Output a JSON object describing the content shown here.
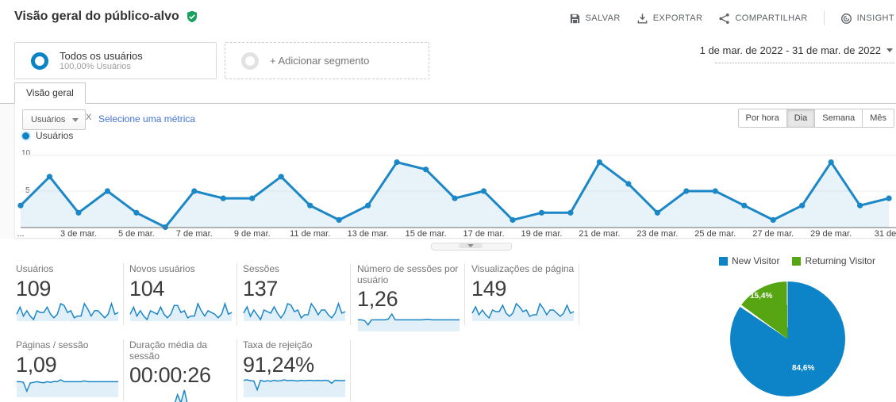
{
  "header": {
    "title": "Visão geral do público-alvo",
    "toolbar": {
      "save": "SALVAR",
      "export": "EXPORTAR",
      "share": "COMPARTILHAR",
      "insight": "INSIGHT"
    }
  },
  "icons": [
    "verified-shield-icon",
    "floppy-save-icon",
    "download-icon",
    "share-icon",
    "insight-icon",
    "dropdown-caret-icon"
  ],
  "segments": {
    "all_users": {
      "title": "Todos os usuários",
      "subtitle": "100,00% Usuários"
    },
    "add_segment": {
      "label": "+ Adicionar segmento"
    }
  },
  "date_range": {
    "label": "1 de mar. de 2022 - 31 de mar. de 2022"
  },
  "tabs": {
    "overview": {
      "label": "Visão geral"
    }
  },
  "metric_picker": {
    "selected_metric": "Usuários",
    "vs_label": "X",
    "add_metric_link": "Selecione uma métrica"
  },
  "granularity": {
    "options": [
      "Por hora",
      "Dia",
      "Semana",
      "Mês"
    ],
    "selected": "Dia"
  },
  "chart_legend": {
    "label": "Usuários"
  },
  "colors": {
    "line_blue": "#1b87c6",
    "area_blue": "rgba(27,135,198,0.10)",
    "pie_blue": "#0d84c8",
    "pie_green": "#58a514",
    "link_blue": "#4272d9",
    "badge_green": "#17a05e"
  },
  "chart_data": [
    {
      "id": "users_by_day",
      "type": "line",
      "title": "Usuários",
      "x": [
        1,
        2,
        3,
        4,
        5,
        6,
        7,
        8,
        9,
        10,
        11,
        12,
        13,
        14,
        15,
        16,
        17,
        18,
        19,
        20,
        21,
        22,
        23,
        24,
        25,
        26,
        27,
        28,
        29,
        30,
        31
      ],
      "x_unit": "dia de março de 2022",
      "values": [
        3,
        7,
        2,
        5,
        2,
        0,
        5,
        4,
        4,
        7,
        3,
        1,
        3,
        9,
        8,
        4,
        5,
        1,
        2,
        2,
        9,
        6,
        2,
        5,
        5,
        3,
        1,
        3,
        9,
        3,
        4
      ],
      "ylim": [
        0,
        10
      ],
      "yticks": [
        5,
        10
      ],
      "grid": true,
      "legend_position": "top-left",
      "x_tick_labels": [
        {
          "day": 1,
          "label": "..."
        },
        {
          "day": 3,
          "label": "3 de mar."
        },
        {
          "day": 5,
          "label": "5 de mar."
        },
        {
          "day": 7,
          "label": "7 de mar."
        },
        {
          "day": 9,
          "label": "9 de mar."
        },
        {
          "day": 11,
          "label": "11 de mar."
        },
        {
          "day": 13,
          "label": "13 de mar."
        },
        {
          "day": 15,
          "label": "15 de mar."
        },
        {
          "day": 17,
          "label": "17 de mar."
        },
        {
          "day": 19,
          "label": "19 de mar."
        },
        {
          "day": 21,
          "label": "21 de mar."
        },
        {
          "day": 23,
          "label": "23 de mar."
        },
        {
          "day": 25,
          "label": "25 de mar."
        },
        {
          "day": 27,
          "label": "27 de mar."
        },
        {
          "day": 29,
          "label": "29 de mar."
        },
        {
          "day": 31,
          "label": "31 de..."
        }
      ]
    },
    {
      "id": "visitor_type_pie",
      "type": "pie",
      "labels": [
        "New Visitor",
        "Returning Visitor"
      ],
      "values": [
        84.6,
        15.4
      ],
      "display_labels": [
        "84,6%",
        "15,4%"
      ],
      "colors": [
        "#0d84c8",
        "#58a514"
      ],
      "legend_position": "top"
    }
  ],
  "metrics": {
    "row1": [
      {
        "label": "Usuários",
        "value": "109",
        "spark": [
          3,
          7,
          2,
          5,
          2,
          0,
          5,
          4,
          4,
          7,
          3,
          1,
          3,
          9,
          8,
          4,
          5,
          1,
          2,
          2,
          9,
          6,
          2,
          5,
          5,
          3,
          1,
          3,
          9,
          3,
          4
        ]
      },
      {
        "label": "Novos usuários",
        "value": "104",
        "spark": [
          3,
          7,
          2,
          5,
          2,
          0,
          5,
          4,
          3,
          7,
          3,
          1,
          3,
          8,
          8,
          4,
          5,
          1,
          2,
          2,
          9,
          5,
          2,
          5,
          4,
          3,
          1,
          3,
          9,
          3,
          4
        ]
      },
      {
        "label": "Sessões",
        "value": "137",
        "spark": [
          4,
          8,
          2,
          6,
          3,
          0,
          6,
          5,
          4,
          8,
          4,
          1,
          4,
          10,
          9,
          5,
          6,
          1,
          3,
          3,
          10,
          7,
          3,
          6,
          6,
          3,
          1,
          4,
          10,
          4,
          5
        ]
      },
      {
        "label": "Número de sessões por usuário",
        "value": "1,26",
        "spark": [
          1.2,
          1.2,
          1.1,
          0.6,
          1.2,
          1.2,
          1.2,
          1.2,
          1.2,
          1.3,
          1.9,
          1.2,
          1.2,
          1.2,
          1.2,
          1.2,
          1.2,
          1.2,
          1.2,
          1.2,
          1.25,
          1.25,
          1.2,
          1.2,
          1.2,
          1.2,
          1.2,
          1.2,
          1.2,
          1.2,
          1.2
        ]
      },
      {
        "label": "Visualizações de página",
        "value": "149",
        "spark": [
          4,
          8,
          3,
          6,
          3,
          1,
          6,
          5,
          5,
          9,
          4,
          2,
          4,
          10,
          8,
          5,
          6,
          2,
          3,
          3,
          10,
          7,
          3,
          6,
          6,
          4,
          2,
          4,
          9,
          4,
          5
        ]
      }
    ],
    "row2": [
      {
        "label": "Páginas / sessão",
        "value": "1,09",
        "spark": [
          1.1,
          1.1,
          1.05,
          0.35,
          1.0,
          1.05,
          1.1,
          1.05,
          1.02,
          1.1,
          1.05,
          1.12,
          1.1,
          1.25,
          1.1,
          1.1,
          1.1,
          1.1,
          1.1,
          1.1,
          1.16,
          1.1,
          1.1,
          1.1,
          1.1,
          1.1,
          1.1,
          1.1,
          1.1,
          1.1,
          1.1
        ]
      },
      {
        "label": "Duração média da sessão",
        "value": "00:00:26",
        "spark": [
          3,
          2,
          2,
          1,
          2,
          2,
          3,
          2,
          2,
          4,
          2,
          1,
          2,
          2,
          30,
          8,
          42,
          2,
          1,
          1,
          2,
          2,
          1,
          1,
          2,
          1,
          1,
          2,
          2,
          1,
          1
        ]
      },
      {
        "label": "Taxa de rejeição",
        "value": "91,24%",
        "spark": [
          92,
          95,
          90,
          88,
          35,
          92,
          85,
          90,
          86,
          92,
          88,
          90,
          95,
          90,
          92,
          90,
          88,
          91,
          90,
          91,
          91,
          90,
          91,
          90,
          92,
          90,
          74,
          92,
          91,
          90,
          91
        ]
      }
    ]
  }
}
